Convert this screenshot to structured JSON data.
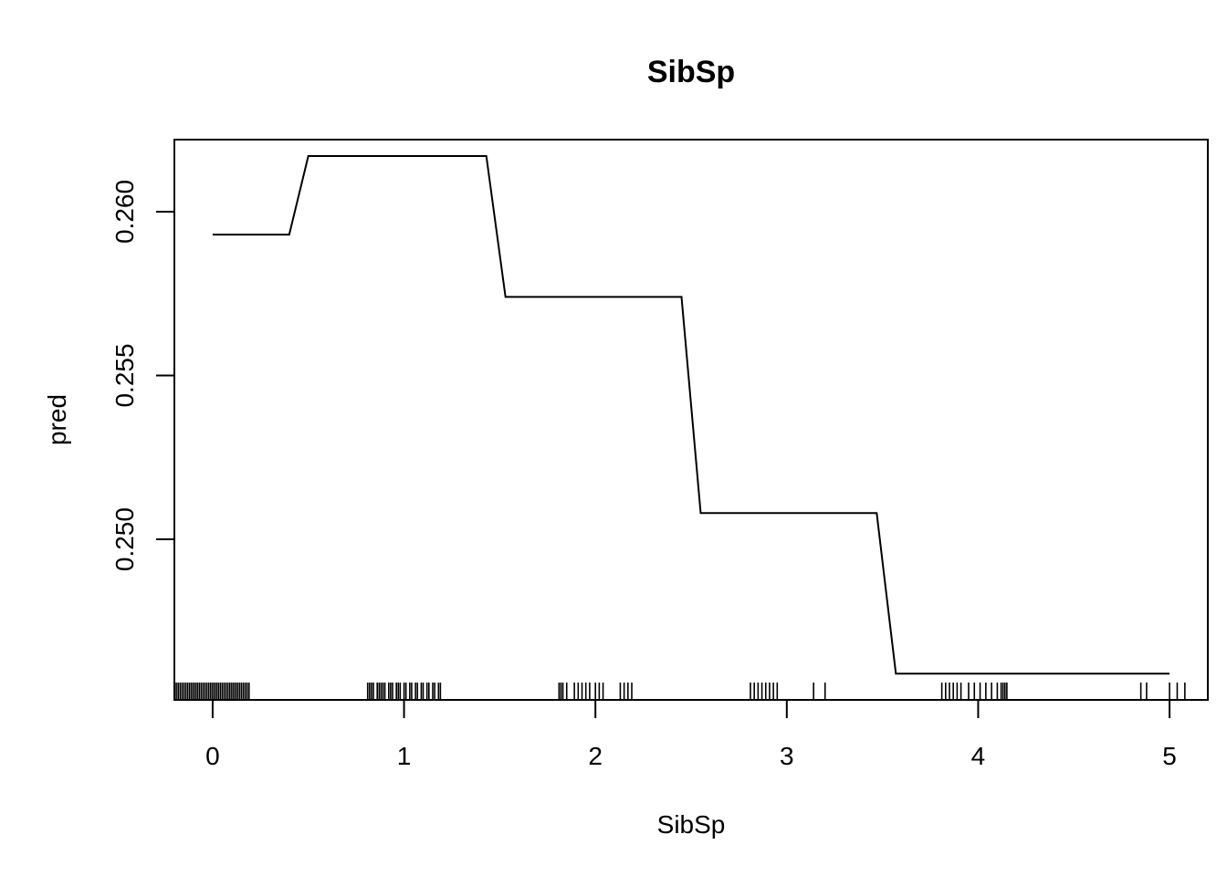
{
  "chart_data": {
    "type": "line",
    "title": "SibSp",
    "xlabel": "SibSp",
    "ylabel": "pred",
    "xlim": [
      -0.2,
      5.2
    ],
    "ylim": [
      0.2451,
      0.2622
    ],
    "x_ticks": [
      0,
      1,
      2,
      3,
      4,
      5
    ],
    "x_tick_labels": [
      "0",
      "1",
      "2",
      "3",
      "4",
      "5"
    ],
    "y_ticks": [
      0.25,
      0.255,
      0.26
    ],
    "y_tick_labels": [
      "0.250",
      "0.255",
      "0.260"
    ],
    "grid": false,
    "series": [
      {
        "name": "pred",
        "x": [
          0,
          0.4,
          0.5,
          1.43,
          1.53,
          2.45,
          2.55,
          3.47,
          3.57,
          5.0
        ],
        "y": [
          0.2593,
          0.2593,
          0.2617,
          0.2617,
          0.2574,
          0.2574,
          0.2508,
          0.2508,
          0.2459,
          0.2459
        ]
      }
    ],
    "rug": [
      -0.19,
      -0.18,
      -0.17,
      -0.16,
      -0.15,
      -0.14,
      -0.13,
      -0.12,
      -0.11,
      -0.1,
      -0.09,
      -0.08,
      -0.07,
      -0.06,
      -0.05,
      -0.04,
      -0.03,
      -0.02,
      -0.01,
      0.0,
      0.01,
      0.02,
      0.03,
      0.04,
      0.05,
      0.06,
      0.07,
      0.08,
      0.09,
      0.1,
      0.11,
      0.12,
      0.13,
      0.14,
      0.15,
      0.16,
      0.17,
      0.18,
      0.19,
      0.81,
      0.82,
      0.83,
      0.84,
      0.86,
      0.87,
      0.88,
      0.89,
      0.9,
      0.92,
      0.93,
      0.94,
      0.96,
      0.97,
      0.98,
      1.0,
      1.01,
      1.03,
      1.04,
      1.06,
      1.07,
      1.09,
      1.1,
      1.12,
      1.13,
      1.15,
      1.16,
      1.18,
      1.19,
      1.81,
      1.82,
      1.83,
      1.85,
      1.89,
      1.91,
      1.93,
      1.95,
      1.97,
      2.0,
      2.02,
      2.04,
      2.13,
      2.15,
      2.17,
      2.19,
      2.81,
      2.83,
      2.85,
      2.87,
      2.89,
      2.91,
      2.93,
      2.95,
      3.14,
      3.2,
      3.81,
      3.83,
      3.85,
      3.87,
      3.89,
      3.91,
      3.95,
      3.98,
      4.01,
      4.04,
      4.07,
      4.1,
      4.12,
      4.13,
      4.14,
      4.15,
      4.85,
      4.88,
      5.0,
      5.04,
      5.08
    ]
  }
}
